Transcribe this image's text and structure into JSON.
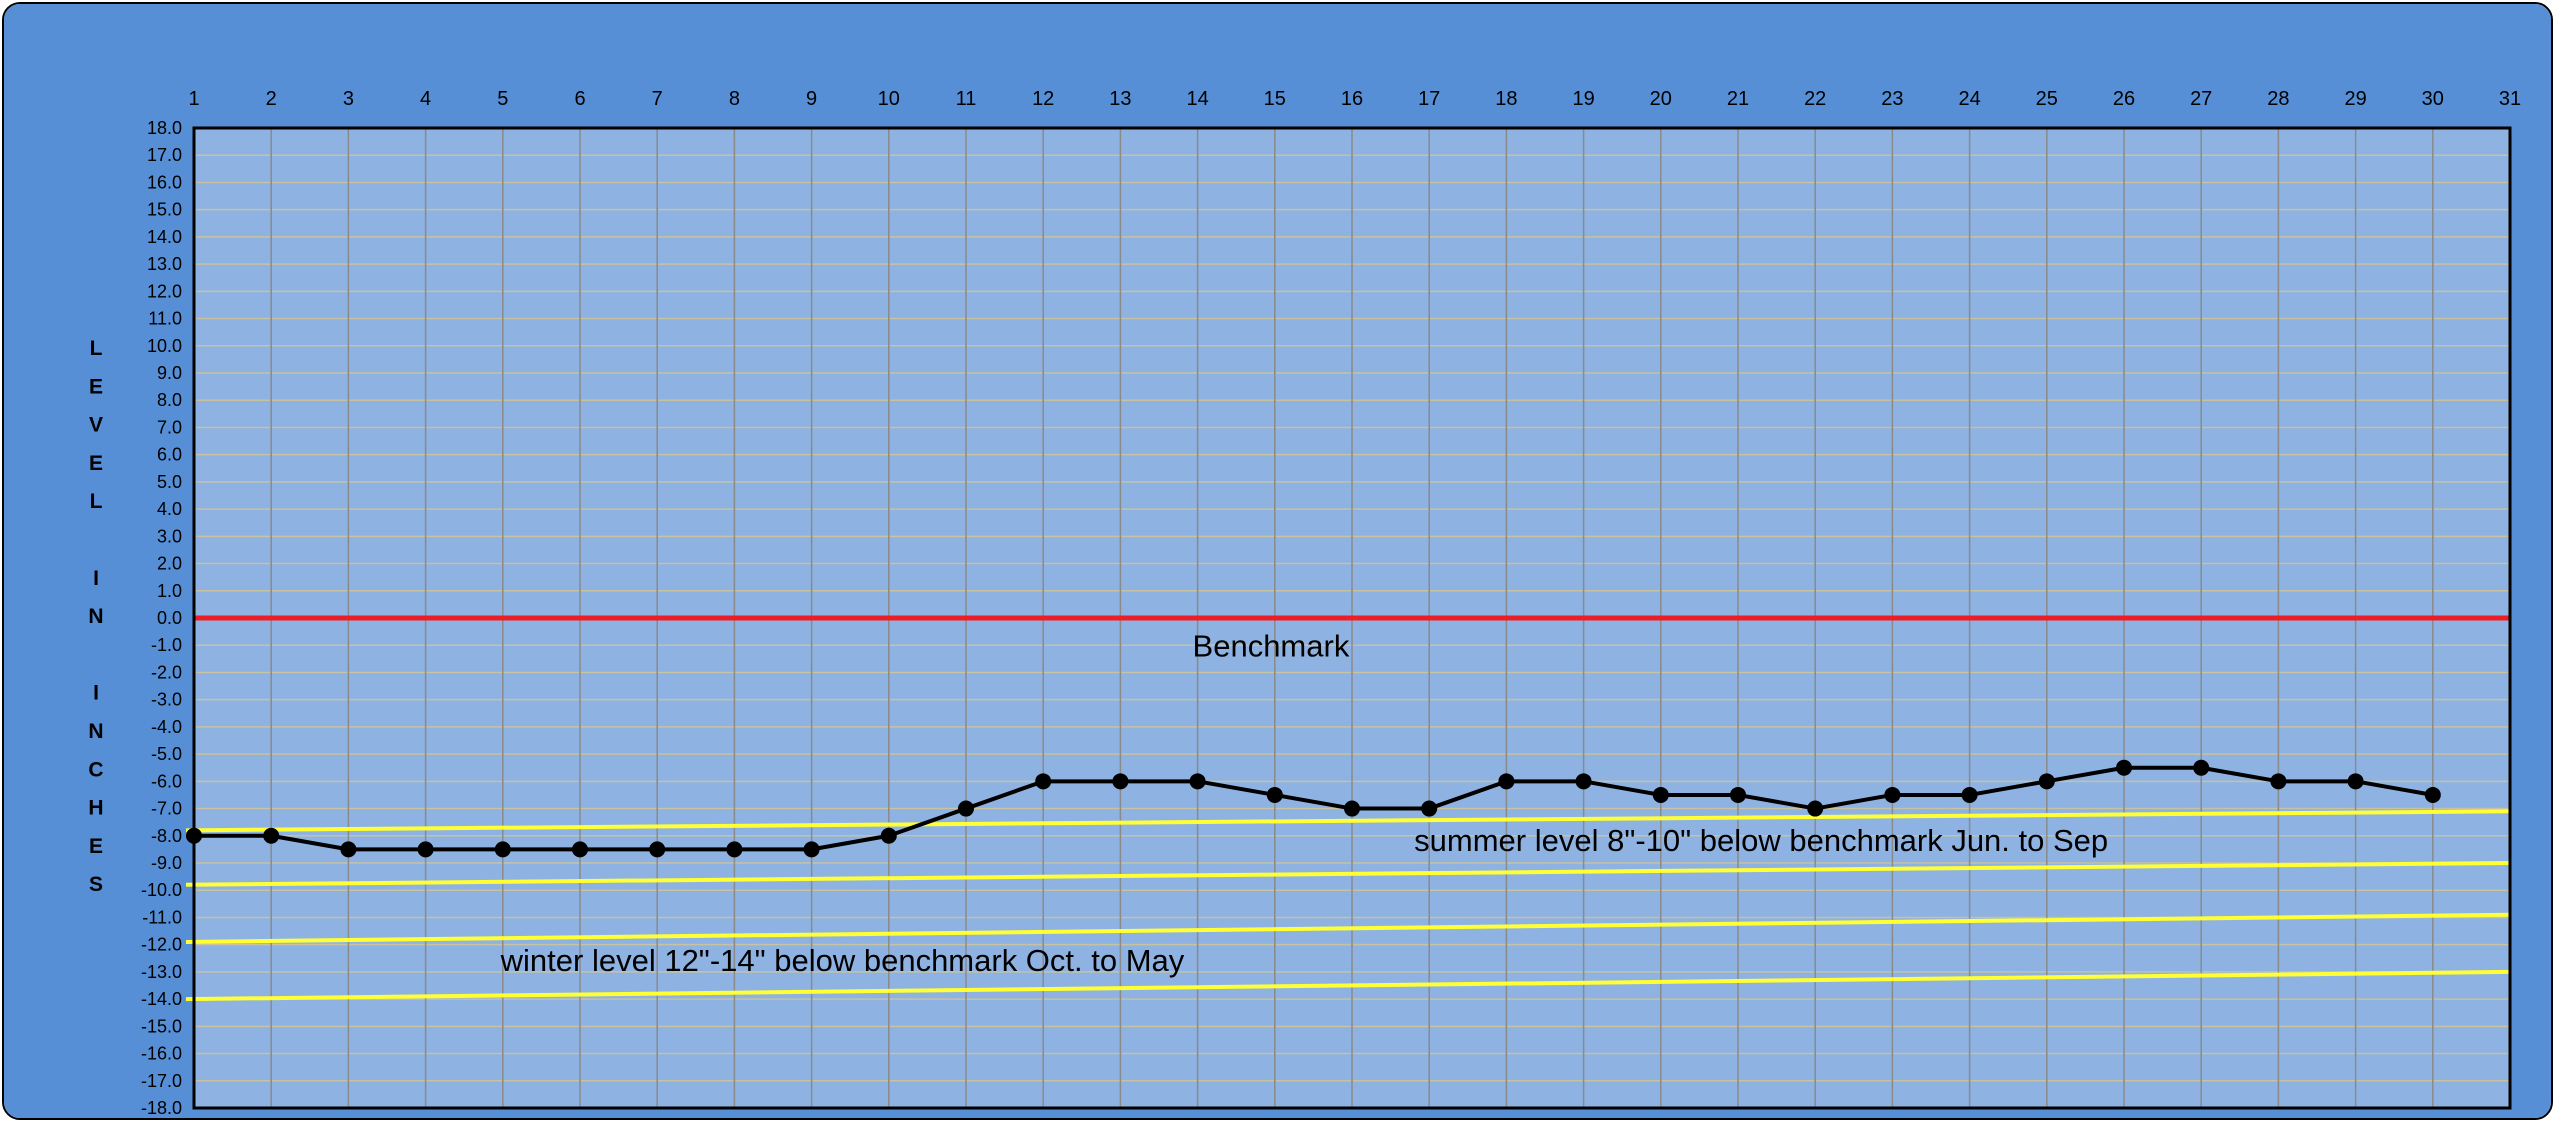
{
  "chart_data": {
    "type": "line",
    "title": "",
    "xlabel": "",
    "ylabel": "L E V E L   I N   I N C H E S",
    "ylabel_letters": [
      "L",
      "E",
      "V",
      "E",
      "L",
      "",
      "I",
      "N",
      "",
      "I",
      "N",
      "C",
      "H",
      "E",
      "S"
    ],
    "x_ticks": [
      1,
      2,
      3,
      4,
      5,
      6,
      7,
      8,
      9,
      10,
      11,
      12,
      13,
      14,
      15,
      16,
      17,
      18,
      19,
      20,
      21,
      22,
      23,
      24,
      25,
      26,
      27,
      28,
      29,
      30,
      31
    ],
    "xlim": [
      1,
      31
    ],
    "ylim": [
      -18,
      18
    ],
    "y_ticks": [
      "18.0",
      "17.0",
      "16.0",
      "15.0",
      "14.0",
      "13.0",
      "12.0",
      "11.0",
      "10.0",
      "9.0",
      "8.0",
      "7.0",
      "6.0",
      "5.0",
      "4.0",
      "3.0",
      "2.0",
      "1.0",
      "0.0",
      "-1.0",
      "-2.0",
      "-3.0",
      "-4.0",
      "-5.0",
      "-6.0",
      "-7.0",
      "-8.0",
      "-9.0",
      "-10.0",
      "-11.0",
      "-12.0",
      "-13.0",
      "-14.0",
      "-15.0",
      "-16.0",
      "-17.0",
      "-18.0"
    ],
    "grid": true,
    "series": [
      {
        "x": [
          1,
          2,
          3,
          4,
          5,
          6,
          7,
          8,
          9,
          10,
          11,
          12,
          13,
          14,
          15,
          16,
          17,
          18,
          19,
          20,
          21,
          22,
          23,
          24,
          25,
          26,
          27,
          28,
          29,
          30
        ],
        "values": [
          -8,
          -8,
          -8.5,
          -8.5,
          -8.5,
          -8.5,
          -8.5,
          -8.5,
          -8.5,
          -8,
          -7,
          -6,
          -6,
          -6,
          -6.5,
          -7,
          -7,
          -6,
          -6,
          -6.5,
          -6.5,
          -7,
          -6.5,
          -6.5,
          -6,
          -5.5,
          -5.5,
          -6,
          -6,
          -6.5
        ],
        "color": "#000000"
      }
    ],
    "reference_lines": [
      {
        "label": "Benchmark",
        "y_start": 0,
        "y_end": 0,
        "color": "#ee1c25"
      },
      {
        "y_start": -7.8,
        "y_end": -7.1,
        "color": "#ffff33"
      },
      {
        "y_start": -9.8,
        "y_end": -9.0,
        "color": "#ffff33"
      },
      {
        "y_start": -11.9,
        "y_end": -10.9,
        "color": "#ffff33"
      },
      {
        "y_start": -14.0,
        "y_end": -13.0,
        "color": "#ffff33"
      }
    ],
    "annotations": [
      {
        "text": "Benchmark",
        "x": 14.95,
        "y": -1.05
      },
      {
        "text": "summer level 8\"-10\" below benchmark Jun. to Sep",
        "x": 21.3,
        "y": -8.2
      },
      {
        "text": "winter level 12\"-14\" below benchmark Oct. to May",
        "x": 9.4,
        "y": -12.6
      }
    ],
    "colors": {
      "frame_background": "#568fd6",
      "plot_background": "#8eb3e3",
      "vertical_grid": "#8a8a8a",
      "horizontal_grid": "#c7c29f"
    }
  }
}
